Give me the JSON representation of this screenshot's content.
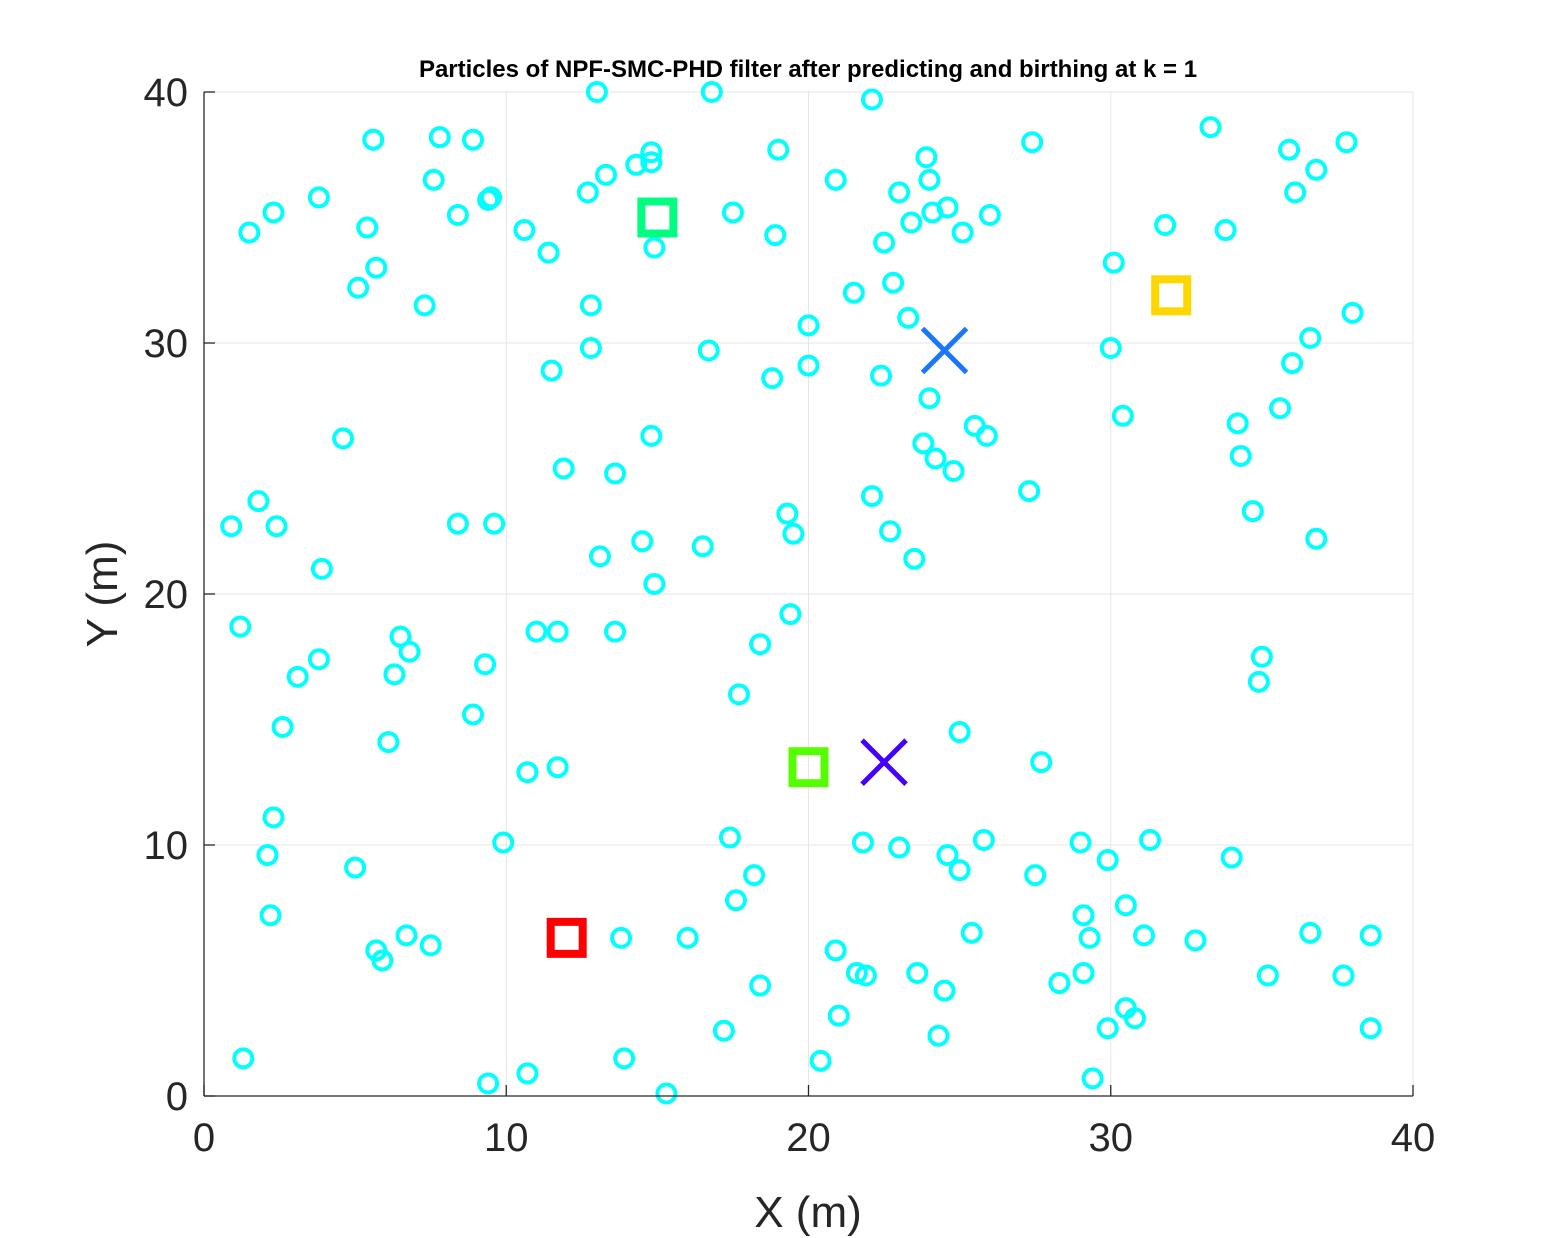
{
  "chart_data": {
    "type": "scatter",
    "title": "Particles of NPF-SMC-PHD filter after predicting and birthing at k = 1",
    "xlabel": "X (m)",
    "ylabel": "Y (m)",
    "xlim": [
      0,
      40
    ],
    "ylim": [
      0,
      40
    ],
    "xticks": [
      "0",
      "10",
      "20",
      "30",
      "40"
    ],
    "yticks": [
      "0",
      "10",
      "20",
      "30",
      "40"
    ],
    "grid": true,
    "legend": "none",
    "particles": {
      "marker": "circle",
      "color": "#00ffff",
      "points": [
        [
          1.3,
          1.5
        ],
        [
          0.9,
          22.7
        ],
        [
          1.2,
          18.7
        ],
        [
          1.5,
          34.4
        ],
        [
          1.8,
          23.7
        ],
        [
          2.1,
          9.6
        ],
        [
          2.3,
          11.1
        ],
        [
          2.2,
          7.2
        ],
        [
          2.3,
          35.2
        ],
        [
          2.4,
          22.7
        ],
        [
          2.6,
          14.7
        ],
        [
          3.1,
          16.7
        ],
        [
          3.8,
          17.4
        ],
        [
          3.8,
          35.8
        ],
        [
          3.9,
          21.0
        ],
        [
          4.6,
          26.2
        ],
        [
          5.0,
          9.1
        ],
        [
          5.1,
          32.2
        ],
        [
          5.4,
          34.6
        ],
        [
          5.7,
          5.8
        ],
        [
          5.6,
          38.1
        ],
        [
          5.7,
          33.0
        ],
        [
          5.9,
          5.4
        ],
        [
          6.1,
          14.1
        ],
        [
          6.3,
          16.8
        ],
        [
          6.5,
          18.3
        ],
        [
          6.8,
          17.7
        ],
        [
          6.7,
          6.4
        ],
        [
          7.3,
          31.5
        ],
        [
          7.5,
          6.0
        ],
        [
          7.6,
          36.5
        ],
        [
          7.8,
          38.2
        ],
        [
          8.4,
          35.1
        ],
        [
          8.4,
          22.8
        ],
        [
          8.9,
          38.1
        ],
        [
          8.9,
          15.2
        ],
        [
          9.3,
          17.2
        ],
        [
          9.5,
          35.8
        ],
        [
          9.4,
          35.7
        ],
        [
          9.4,
          0.5
        ],
        [
          9.6,
          22.8
        ],
        [
          9.9,
          10.1
        ],
        [
          10.6,
          34.5
        ],
        [
          10.7,
          12.9
        ],
        [
          10.7,
          0.9
        ],
        [
          11.0,
          18.5
        ],
        [
          11.4,
          33.6
        ],
        [
          11.5,
          28.9
        ],
        [
          11.7,
          18.5
        ],
        [
          11.7,
          13.1
        ],
        [
          11.9,
          25.0
        ],
        [
          12.7,
          36.0
        ],
        [
          12.8,
          31.5
        ],
        [
          12.8,
          29.8
        ],
        [
          13.0,
          40.0
        ],
        [
          13.3,
          36.7
        ],
        [
          13.1,
          21.5
        ],
        [
          13.6,
          24.8
        ],
        [
          13.6,
          18.5
        ],
        [
          13.8,
          6.3
        ],
        [
          13.9,
          1.5
        ],
        [
          14.3,
          37.1
        ],
        [
          14.8,
          37.2
        ],
        [
          14.8,
          37.6
        ],
        [
          14.5,
          22.1
        ],
        [
          14.9,
          33.8
        ],
        [
          14.8,
          26.3
        ],
        [
          14.9,
          20.4
        ],
        [
          15.3,
          0.1
        ],
        [
          16.0,
          6.3
        ],
        [
          16.5,
          21.9
        ],
        [
          16.7,
          29.7
        ],
        [
          16.8,
          40.0
        ],
        [
          17.2,
          2.6
        ],
        [
          17.4,
          10.3
        ],
        [
          17.5,
          35.2
        ],
        [
          17.6,
          7.8
        ],
        [
          17.7,
          16.0
        ],
        [
          18.2,
          8.8
        ],
        [
          18.4,
          18.0
        ],
        [
          18.4,
          4.4
        ],
        [
          18.8,
          28.6
        ],
        [
          18.9,
          34.3
        ],
        [
          19.0,
          37.7
        ],
        [
          19.3,
          23.2
        ],
        [
          19.5,
          22.4
        ],
        [
          19.4,
          19.2
        ],
        [
          20.0,
          29.1
        ],
        [
          20.0,
          30.7
        ],
        [
          20.4,
          1.4
        ],
        [
          20.9,
          36.5
        ],
        [
          20.9,
          5.8
        ],
        [
          21.0,
          3.2
        ],
        [
          21.5,
          32.0
        ],
        [
          21.6,
          4.9
        ],
        [
          21.9,
          4.8
        ],
        [
          21.8,
          10.1
        ],
        [
          22.1,
          23.9
        ],
        [
          22.1,
          39.7
        ],
        [
          22.5,
          34.0
        ],
        [
          22.4,
          28.7
        ],
        [
          22.7,
          22.5
        ],
        [
          22.8,
          32.4
        ],
        [
          23.0,
          36.0
        ],
        [
          23.0,
          9.9
        ],
        [
          23.3,
          31.0
        ],
        [
          23.4,
          34.8
        ],
        [
          23.5,
          21.4
        ],
        [
          23.6,
          4.9
        ],
        [
          23.8,
          26.0
        ],
        [
          23.9,
          37.4
        ],
        [
          24.0,
          27.8
        ],
        [
          24.0,
          36.5
        ],
        [
          24.1,
          35.2
        ],
        [
          24.2,
          25.4
        ],
        [
          24.3,
          2.4
        ],
        [
          24.5,
          4.2
        ],
        [
          24.6,
          35.4
        ],
        [
          24.6,
          9.6
        ],
        [
          24.8,
          24.9
        ],
        [
          25.0,
          9.0
        ],
        [
          25.0,
          14.5
        ],
        [
          25.1,
          34.4
        ],
        [
          25.4,
          6.5
        ],
        [
          25.5,
          26.7
        ],
        [
          25.8,
          10.2
        ],
        [
          25.9,
          26.3
        ],
        [
          26.0,
          35.1
        ],
        [
          27.3,
          24.1
        ],
        [
          27.4,
          38.0
        ],
        [
          27.5,
          8.8
        ],
        [
          27.7,
          13.3
        ],
        [
          28.3,
          4.5
        ],
        [
          29.0,
          10.1
        ],
        [
          29.1,
          7.2
        ],
        [
          29.1,
          4.9
        ],
        [
          29.3,
          6.3
        ],
        [
          29.4,
          0.7
        ],
        [
          29.9,
          9.4
        ],
        [
          29.9,
          2.7
        ],
        [
          30.0,
          29.8
        ],
        [
          30.1,
          33.2
        ],
        [
          30.4,
          27.1
        ],
        [
          30.5,
          7.6
        ],
        [
          30.5,
          3.5
        ],
        [
          30.8,
          3.1
        ],
        [
          31.1,
          6.4
        ],
        [
          31.3,
          10.2
        ],
        [
          31.8,
          34.7
        ],
        [
          32.8,
          6.2
        ],
        [
          33.3,
          38.6
        ],
        [
          33.8,
          34.5
        ],
        [
          34.0,
          9.5
        ],
        [
          34.2,
          26.8
        ],
        [
          34.3,
          25.5
        ],
        [
          34.7,
          23.3
        ],
        [
          34.9,
          16.5
        ],
        [
          35.0,
          17.5
        ],
        [
          35.2,
          4.8
        ],
        [
          35.6,
          27.4
        ],
        [
          35.9,
          37.7
        ],
        [
          36.0,
          29.2
        ],
        [
          36.1,
          36.0
        ],
        [
          36.6,
          30.2
        ],
        [
          36.6,
          6.5
        ],
        [
          36.8,
          36.9
        ],
        [
          36.8,
          22.2
        ],
        [
          37.7,
          4.8
        ],
        [
          37.8,
          38.0
        ],
        [
          38.0,
          31.2
        ],
        [
          38.6,
          6.4
        ],
        [
          38.6,
          2.7
        ]
      ]
    },
    "markers": [
      {
        "shape": "square",
        "x": 12.0,
        "y": 6.3,
        "color": "#ff0000"
      },
      {
        "shape": "square",
        "x": 15.0,
        "y": 35.0,
        "color": "#00ff80"
      },
      {
        "shape": "square",
        "x": 20.0,
        "y": 13.1,
        "color": "#55ff00"
      },
      {
        "shape": "square",
        "x": 32.0,
        "y": 31.9,
        "color": "#ffd700"
      },
      {
        "shape": "x",
        "x": 24.5,
        "y": 29.7,
        "color": "#1a75ff"
      },
      {
        "shape": "x",
        "x": 22.5,
        "y": 13.3,
        "color": "#4400ff"
      }
    ]
  }
}
